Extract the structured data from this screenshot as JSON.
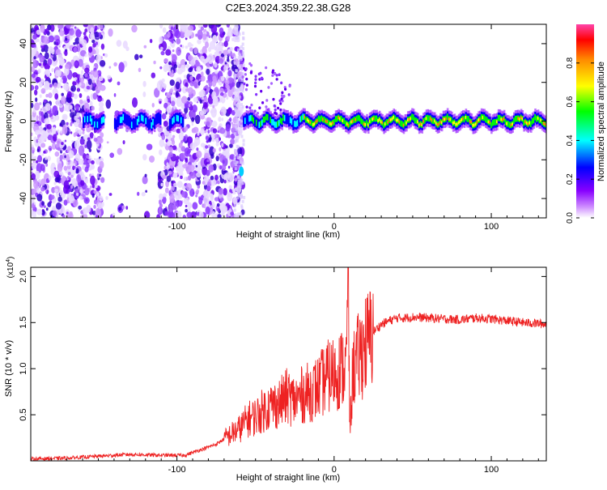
{
  "figure": {
    "title": "C2E3.2024.359.22.38.G28"
  },
  "chart_data": [
    {
      "type": "heatmap",
      "title": "C2E3.2024.359.22.38.G28",
      "xlabel": "Height of straight line (km)",
      "ylabel": "Frequency (Hz)",
      "xlim": [
        -193,
        135
      ],
      "ylim": [
        -50,
        50
      ],
      "xticks": [
        -100,
        0,
        100
      ],
      "yticks": [
        -40,
        -20,
        0,
        20,
        40
      ],
      "colorbar": {
        "label": "Normalized spectral amplitude",
        "range": [
          0,
          1
        ],
        "ticks": [
          "0.0",
          "0.2",
          "0.4",
          "0.6",
          "0.8"
        ],
        "colors": [
          "#ffffff",
          "#cc88ff",
          "#8800ff",
          "#0000ff",
          "#00ffff",
          "#00ff00",
          "#ffff00",
          "#ff8800",
          "#ff0000"
        ]
      },
      "features": {
        "noise_region_x": [
          -193,
          -58
        ],
        "gap_x": [
          -147,
          -111
        ],
        "signal_start_x": -58,
        "signal_center_freq_hz": 0,
        "signal_amplitude_high_from_x": -20
      }
    },
    {
      "type": "line",
      "xlabel": "Height of straight line (km)",
      "ylabel": "SNR (10 * v/v)",
      "y_multiplier": "(x10",
      "y_multiplier_exp": "4",
      "xlim": [
        -193,
        135
      ],
      "ylim": [
        0,
        2.1
      ],
      "xticks": [
        -100,
        0,
        100
      ],
      "yticks": [
        0.5,
        1.0,
        1.5,
        2.0
      ],
      "ytick_labels": [
        "0.5",
        "1.0",
        "1.5",
        "2.0"
      ],
      "color": "#ee2222",
      "x": [
        -193,
        -170,
        -150,
        -130,
        -110,
        -95,
        -85,
        -75,
        -68,
        -60,
        -55,
        -50,
        -45,
        -40,
        -35,
        -30,
        -25,
        -20,
        -15,
        -10,
        -5,
        0,
        5,
        8,
        9,
        10,
        12,
        15,
        18,
        20,
        22,
        25,
        30,
        35,
        40,
        45,
        50,
        60,
        70,
        80,
        90,
        100,
        110,
        120,
        130,
        135
      ],
      "y": [
        0.02,
        0.03,
        0.05,
        0.07,
        0.06,
        0.06,
        0.12,
        0.18,
        0.26,
        0.35,
        0.45,
        0.48,
        0.55,
        0.6,
        0.62,
        0.7,
        0.65,
        0.72,
        0.75,
        0.8,
        0.9,
        0.95,
        1.0,
        1.05,
        2.1,
        0.3,
        1.0,
        1.1,
        1.2,
        1.27,
        1.3,
        1.4,
        1.48,
        1.52,
        1.55,
        1.55,
        1.56,
        1.55,
        1.54,
        1.53,
        1.55,
        1.54,
        1.52,
        1.5,
        1.49,
        1.48
      ]
    }
  ]
}
